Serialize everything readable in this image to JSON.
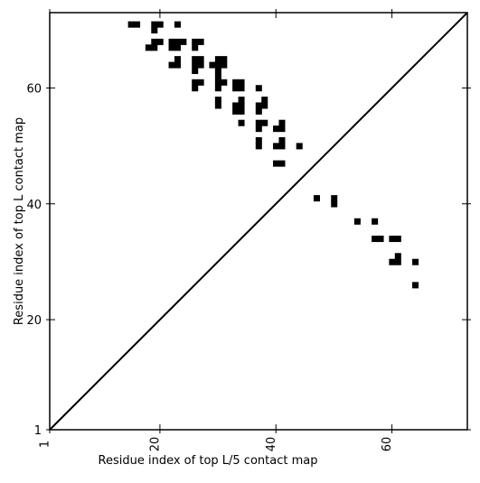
{
  "chart_data": {
    "type": "heatmap",
    "xlabel": "Residue index of top L/5 contact map",
    "ylabel": "Residue index of top L contact map",
    "xlim": [
      1,
      73
    ],
    "ylim": [
      1,
      73
    ],
    "x_ticks": [
      "1",
      "20",
      "40",
      "60"
    ],
    "y_ticks": [
      "1",
      "20",
      "40",
      "60"
    ],
    "x_tick_values": [
      1,
      20,
      40,
      60
    ],
    "y_tick_values": [
      1,
      20,
      40,
      60
    ],
    "diagonal": true,
    "grid": false,
    "cell_color": "#000000",
    "contacts_top_L": [
      [
        15,
        71
      ],
      [
        16,
        71
      ],
      [
        19,
        71
      ],
      [
        20,
        71
      ],
      [
        19,
        70
      ],
      [
        23,
        71
      ],
      [
        18,
        67
      ],
      [
        19,
        67
      ],
      [
        19,
        68
      ],
      [
        20,
        68
      ],
      [
        22,
        67
      ],
      [
        23,
        67
      ],
      [
        22,
        68
      ],
      [
        23,
        68
      ],
      [
        24,
        68
      ],
      [
        22,
        64
      ],
      [
        23,
        64
      ],
      [
        23,
        65
      ],
      [
        26,
        67
      ],
      [
        26,
        68
      ],
      [
        27,
        68
      ],
      [
        26,
        63
      ],
      [
        26,
        64
      ],
      [
        26,
        65
      ],
      [
        27,
        64
      ],
      [
        27,
        65
      ],
      [
        26,
        60
      ],
      [
        26,
        61
      ],
      [
        27,
        61
      ],
      [
        29,
        64
      ],
      [
        30,
        64
      ],
      [
        30,
        65
      ],
      [
        31,
        64
      ],
      [
        31,
        65
      ],
      [
        30,
        60
      ],
      [
        30,
        61
      ],
      [
        30,
        62
      ],
      [
        30,
        63
      ],
      [
        31,
        61
      ],
      [
        30,
        57
      ],
      [
        30,
        58
      ],
      [
        33,
        60
      ],
      [
        33,
        61
      ],
      [
        34,
        60
      ],
      [
        34,
        61
      ],
      [
        33,
        56
      ],
      [
        33,
        57
      ],
      [
        34,
        56
      ],
      [
        34,
        57
      ],
      [
        34,
        58
      ],
      [
        34,
        54
      ],
      [
        37,
        60
      ],
      [
        37,
        56
      ],
      [
        37,
        57
      ],
      [
        38,
        57
      ],
      [
        38,
        58
      ],
      [
        37,
        53
      ],
      [
        37,
        54
      ],
      [
        38,
        54
      ],
      [
        37,
        50
      ],
      [
        37,
        51
      ],
      [
        40,
        53
      ],
      [
        41,
        53
      ],
      [
        41,
        54
      ],
      [
        40,
        50
      ],
      [
        41,
        50
      ],
      [
        41,
        51
      ],
      [
        44,
        50
      ],
      [
        40,
        47
      ],
      [
        41,
        47
      ]
    ],
    "contacts_top_L5": [
      [
        47,
        41
      ],
      [
        50,
        40
      ],
      [
        50,
        41
      ],
      [
        54,
        37
      ],
      [
        57,
        37
      ],
      [
        57,
        34
      ],
      [
        58,
        34
      ],
      [
        60,
        34
      ],
      [
        61,
        34
      ],
      [
        60,
        30
      ],
      [
        61,
        30
      ],
      [
        61,
        31
      ],
      [
        64,
        30
      ],
      [
        64,
        26
      ]
    ]
  }
}
